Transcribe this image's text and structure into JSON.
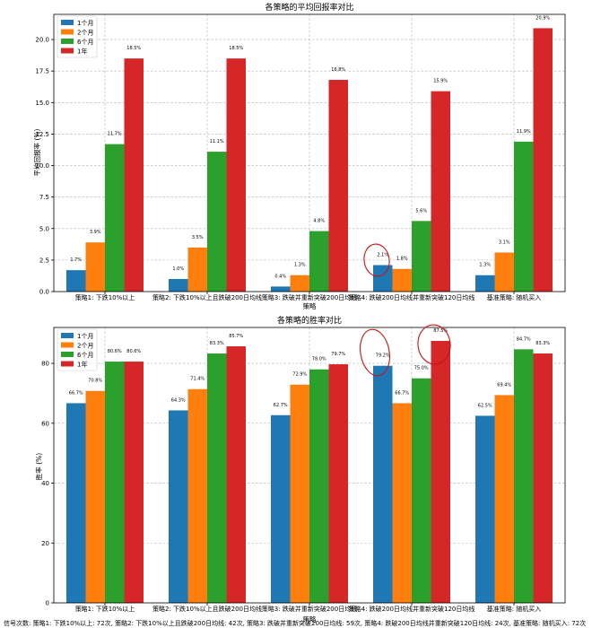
{
  "colors": {
    "m1": "#1f77b4",
    "m2": "#ff7f0e",
    "m6": "#2ca02c",
    "y1": "#d62728",
    "annotation": "#cc1111"
  },
  "chart_data": [
    {
      "type": "bar",
      "title": "各策略的平均回报率对比",
      "xlabel": "策略",
      "ylabel": "平均回报率 (%)",
      "ylim": [
        0,
        22
      ],
      "yticks": [
        "0.0",
        "2.5",
        "5.0",
        "7.5",
        "10.0",
        "12.5",
        "15.0",
        "17.5",
        "20.0"
      ],
      "legend_position": "top-left",
      "grid": true,
      "categories": [
        "策略1: 下跌10%以上",
        "策略2: 下跌10%以上且跌破200日均线",
        "策略3: 跌破并重新突破200日均线",
        "策略4: 跌破200日均线并重新突破120日均线",
        "基准策略: 随机买入"
      ],
      "series": [
        {
          "name": "1个月",
          "values": [
            1.7,
            1.0,
            0.4,
            2.1,
            1.3
          ],
          "labels": [
            "1.7%",
            "1.0%",
            "0.4%",
            "2.1%",
            "1.3%"
          ]
        },
        {
          "name": "2个月",
          "values": [
            3.9,
            3.5,
            1.3,
            1.8,
            3.1
          ],
          "labels": [
            "3.9%",
            "3.5%",
            "1.3%",
            "1.8%",
            "3.1%"
          ]
        },
        {
          "name": "6个月",
          "values": [
            11.7,
            11.1,
            4.8,
            5.6,
            11.9
          ],
          "labels": [
            "11.7%",
            "11.1%",
            "4.8%",
            "5.6%",
            "11.9%"
          ]
        },
        {
          "name": "1年",
          "values": [
            18.5,
            18.5,
            16.8,
            15.9,
            20.9
          ],
          "labels": [
            "18.5%",
            "18.5%",
            "16.8%",
            "15.9%",
            "20.9%"
          ]
        }
      ]
    },
    {
      "type": "bar",
      "title": "各策略的胜率对比",
      "xlabel": "策略",
      "ylabel": "胜率 (%)",
      "ylim": [
        0,
        92
      ],
      "yticks": [
        "0",
        "20",
        "40",
        "60",
        "80"
      ],
      "legend_position": "top-left",
      "grid": true,
      "categories": [
        "策略1: 下跌10%以上",
        "策略2: 下跌10%以上且跌破200日均线",
        "策略3: 跌破并重新突破200日均线",
        "策略4: 跌破200日均线并重新突破120日均线",
        "基准策略: 随机买入"
      ],
      "series": [
        {
          "name": "1个月",
          "values": [
            66.7,
            64.3,
            62.7,
            79.2,
            62.5
          ],
          "labels": [
            "66.7%",
            "64.3%",
            "62.7%",
            "79.2%",
            "62.5%"
          ]
        },
        {
          "name": "2个月",
          "values": [
            70.8,
            71.4,
            72.9,
            66.7,
            69.4
          ],
          "labels": [
            "70.8%",
            "71.4%",
            "72.9%",
            "66.7%",
            "69.4%"
          ]
        },
        {
          "name": "6个月",
          "values": [
            80.6,
            83.3,
            78.0,
            75.0,
            84.7
          ],
          "labels": [
            "80.6%",
            "83.3%",
            "78.0%",
            "75.0%",
            "84.7%"
          ]
        },
        {
          "name": "1年",
          "values": [
            80.6,
            85.7,
            79.7,
            87.5,
            83.3
          ],
          "labels": [
            "80.6%",
            "85.7%",
            "79.7%",
            "87.5%",
            "83.3%"
          ]
        }
      ]
    }
  ],
  "footer": "信号次数: 策略1: 下跌10%以上: 72次, 策略2: 下跌10%以上且跌破200日均线: 42次, 策略3: 跌破并重新突破200日均线: 59次, 策略4: 跌破200日均线并重新突破120日均线: 24次, 基准策略: 随机买入: 72次"
}
